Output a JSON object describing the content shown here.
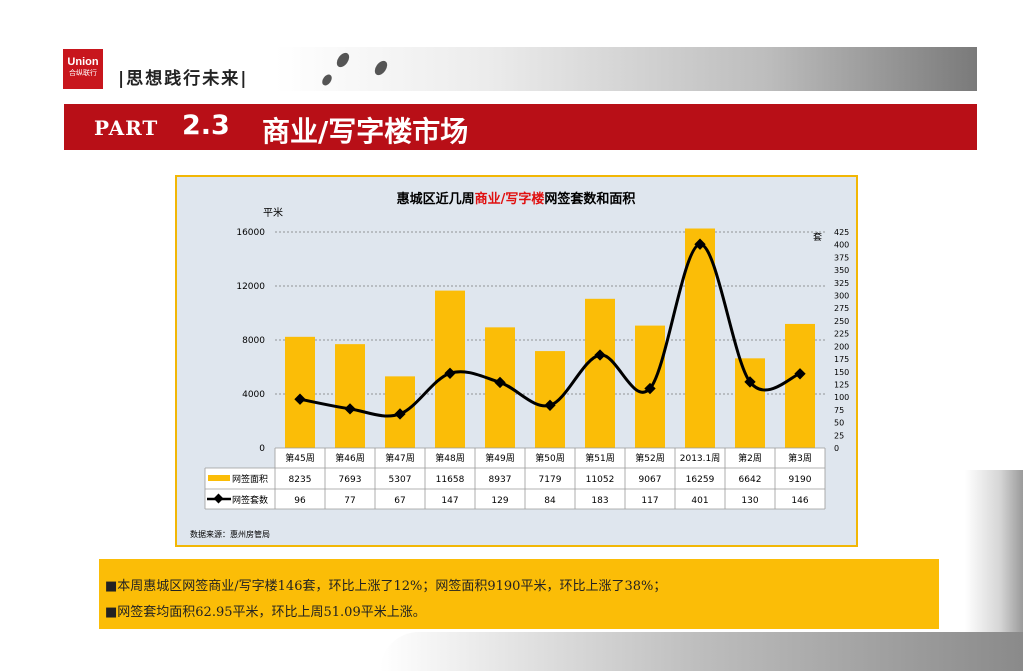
{
  "header": {
    "logo_text": "Union",
    "logo_subtext": "合纵联行",
    "slogan": "|思想践行未来|"
  },
  "section": {
    "part_label": "PART",
    "number": "2.3",
    "title": "商业/写字楼市场"
  },
  "colors": {
    "brand_red": "#b80f17",
    "bar_yellow": "#fbbd07",
    "line_black": "#000000"
  },
  "chart_data": {
    "type": "bar",
    "title_parts": [
      "惠城区近几周",
      "商业/写字楼",
      "网签套数和面积"
    ],
    "y_left_label": "平米",
    "y_right_label": "套",
    "y_left_range": [
      0,
      16000
    ],
    "y_left_ticks": [
      "0",
      "4000",
      "8000",
      "12000",
      "16000"
    ],
    "y_right_range": [
      0,
      425
    ],
    "y_right_ticks": [
      "0",
      "25",
      "50",
      "75",
      "100",
      "125",
      "150",
      "175",
      "200",
      "225",
      "250",
      "275",
      "300",
      "325",
      "350",
      "375",
      "400",
      "425"
    ],
    "categories": [
      "第45周",
      "第46周",
      "第47周",
      "第48周",
      "第49周",
      "第50周",
      "第51周",
      "第52周",
      "2013.1周",
      "第2周",
      "第3周"
    ],
    "series": [
      {
        "name": "网签面积",
        "type": "bar",
        "axis": "left",
        "values": [
          8235,
          7693,
          5307,
          11658,
          8937,
          7179,
          11052,
          9067,
          16259,
          6642,
          9190
        ]
      },
      {
        "name": "网签套数",
        "type": "line",
        "axis": "right",
        "values": [
          96,
          77,
          67,
          147,
          129,
          84,
          183,
          117,
          401,
          130,
          146
        ]
      }
    ],
    "grid": "horizontal dashed",
    "legend": "data table below chart",
    "source": "数据来源：惠州房管局"
  },
  "notes": [
    "■本周惠城区网签商业/写字楼146套，环比上涨了12%；网签面积9190平米，环比上涨了38%；",
    "■网签套均面积62.95平米，环比上周51.09平米上涨。"
  ]
}
